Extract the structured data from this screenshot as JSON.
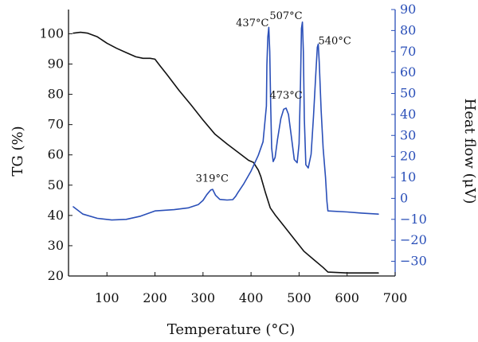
{
  "colors": {
    "tg": "#111111",
    "heat": "#2a4fb8",
    "frame": "#111111"
  },
  "chart_data": {
    "type": "line",
    "xlabel": "Temperature (°C)",
    "ylabel_left": "TG (%)",
    "ylabel_right": "Heat flow (μV)",
    "xlim": [
      20,
      700
    ],
    "ylim_left": [
      20,
      108
    ],
    "ylim_right": [
      -37,
      90
    ],
    "x_ticks": [
      100,
      200,
      300,
      400,
      500,
      600,
      700
    ],
    "y_left_ticks": [
      20,
      30,
      40,
      50,
      60,
      70,
      80,
      90,
      100
    ],
    "y_right_ticks": [
      -30,
      -20,
      -10,
      0,
      10,
      20,
      30,
      40,
      50,
      60,
      70,
      80,
      90
    ],
    "grid": false,
    "series": [
      {
        "name": "TG",
        "axis": "left",
        "x": [
          30,
          45,
          60,
          80,
          100,
          120,
          140,
          160,
          175,
          190,
          200,
          210,
          225,
          250,
          275,
          300,
          325,
          350,
          375,
          395,
          405,
          415,
          420,
          430,
          440,
          450,
          470,
          490,
          510,
          530,
          550,
          560,
          600,
          640,
          665
        ],
        "values": [
          100.2,
          100.5,
          100.2,
          99.0,
          96.9,
          95.2,
          93.8,
          92.4,
          91.9,
          91.9,
          91.6,
          89.5,
          86.5,
          81.3,
          76.5,
          71.5,
          66.8,
          63.6,
          60.6,
          58.2,
          57.5,
          55.0,
          53.0,
          47.5,
          42.5,
          40.2,
          36.2,
          32.2,
          28.2,
          25.5,
          22.8,
          21.3,
          21.0,
          21.0,
          21.0
        ]
      },
      {
        "name": "Heat flow",
        "axis": "right",
        "x": [
          30,
          50,
          80,
          110,
          140,
          170,
          200,
          240,
          270,
          290,
          300,
          308,
          316,
          320,
          326,
          335,
          350,
          362,
          368,
          372,
          385,
          400,
          415,
          425,
          432,
          433,
          435,
          437,
          439,
          441,
          443,
          446,
          450,
          455,
          462,
          468,
          473,
          478,
          483,
          490,
          496,
          500,
          503,
          505,
          507,
          509,
          511,
          514,
          519,
          525,
          530,
          535,
          538,
          540,
          542,
          546,
          550,
          555,
          558,
          560,
          600,
          630,
          665
        ],
        "values": [
          -4.0,
          -7.5,
          -9.5,
          -10.3,
          -10.0,
          -8.5,
          -6.0,
          -5.4,
          -4.5,
          -3.0,
          -1.0,
          1.8,
          4.0,
          4.3,
          1.5,
          -0.5,
          -0.8,
          -0.6,
          1.0,
          2.5,
          7.0,
          13.0,
          20.5,
          27.0,
          44.0,
          63.5,
          77.0,
          81.5,
          70.0,
          44.0,
          24.0,
          17.5,
          19.5,
          28.0,
          38.0,
          42.5,
          43.0,
          40.0,
          31.0,
          18.5,
          17.0,
          26.0,
          55.0,
          81.0,
          84.0,
          70.0,
          38.0,
          16.0,
          14.5,
          21.0,
          39.0,
          60.0,
          72.0,
          73.5,
          65.0,
          42.0,
          24.0,
          10.0,
          -1.5,
          -6.0,
          -6.5,
          -7.0,
          -7.5
        ]
      }
    ],
    "annotations": [
      {
        "text": "319°C",
        "x": 319,
        "y": 8.0,
        "axis": "right",
        "anchor": "middle"
      },
      {
        "text": "437°C",
        "x": 437,
        "y": 82.0,
        "axis": "right",
        "anchor": "end"
      },
      {
        "text": "473°C",
        "x": 473,
        "y": 47.5,
        "axis": "right",
        "anchor": "middle"
      },
      {
        "text": "507°C",
        "x": 507,
        "y": 85.5,
        "axis": "right",
        "anchor": "end"
      },
      {
        "text": "540°C",
        "x": 540,
        "y": 73.5,
        "axis": "right",
        "anchor": "start"
      }
    ]
  }
}
